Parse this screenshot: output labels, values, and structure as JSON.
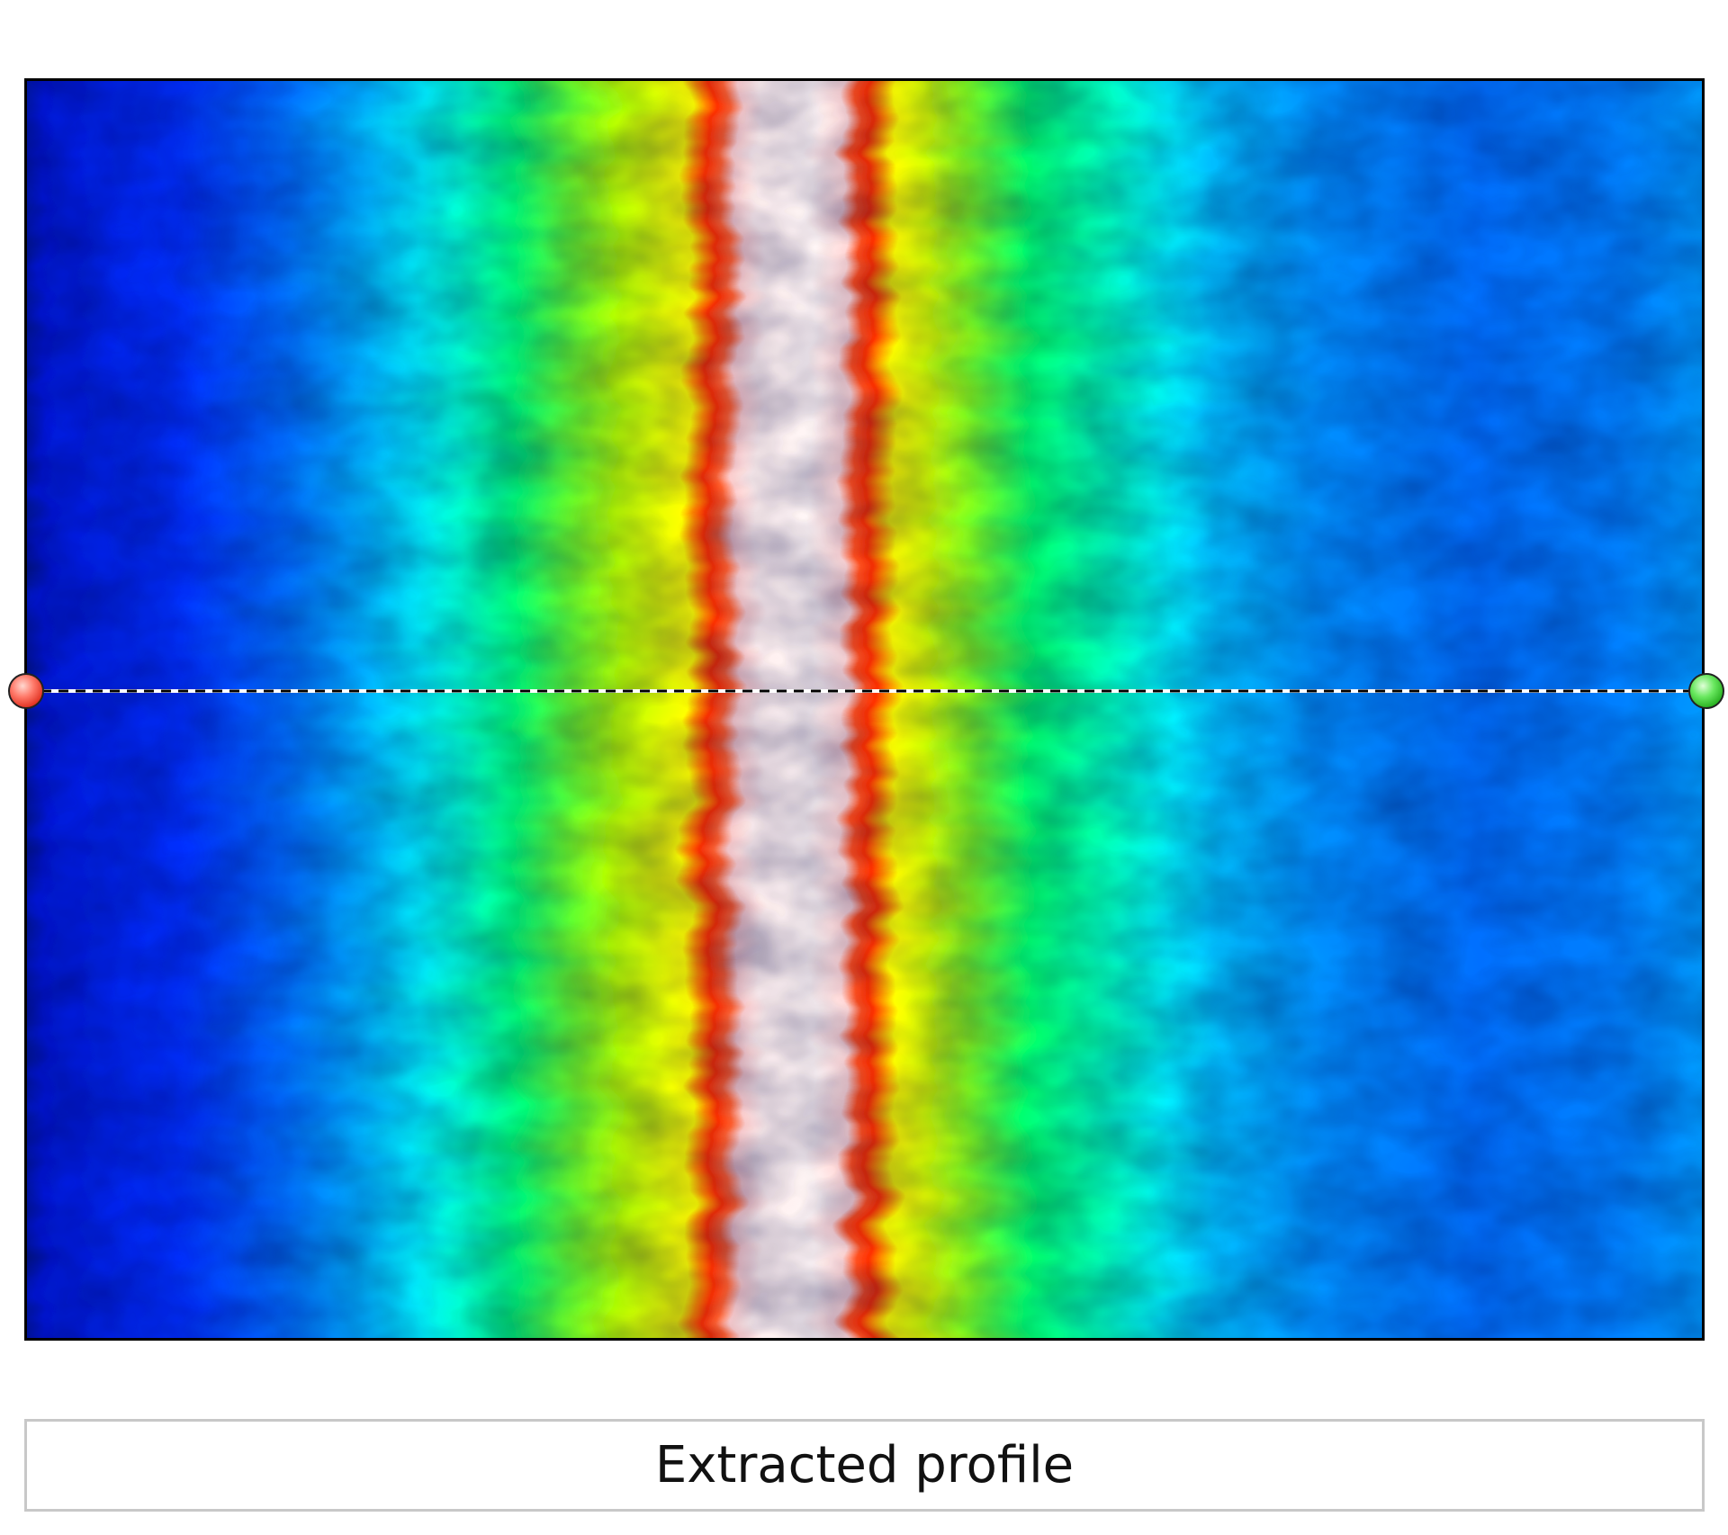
{
  "caption": {
    "label": "Extracted profile"
  },
  "colors": {
    "frame_border": "#000000",
    "caption_border": "#c8c8c8",
    "line_dash_dark": "#000000",
    "line_dash_light": "#ffffff",
    "start_handle": "#ff6a5a",
    "end_handle": "#5ee05a",
    "colormap": [
      "#000000",
      "#0000ff",
      "#00a8ff",
      "#00ffff",
      "#00ff80",
      "#c8ff00",
      "#ffff00",
      "#ff3000",
      "#ffe8e8"
    ]
  },
  "profile": {
    "start_handle_icon": "circle-handle-icon",
    "end_handle_icon": "circle-handle-icon"
  }
}
